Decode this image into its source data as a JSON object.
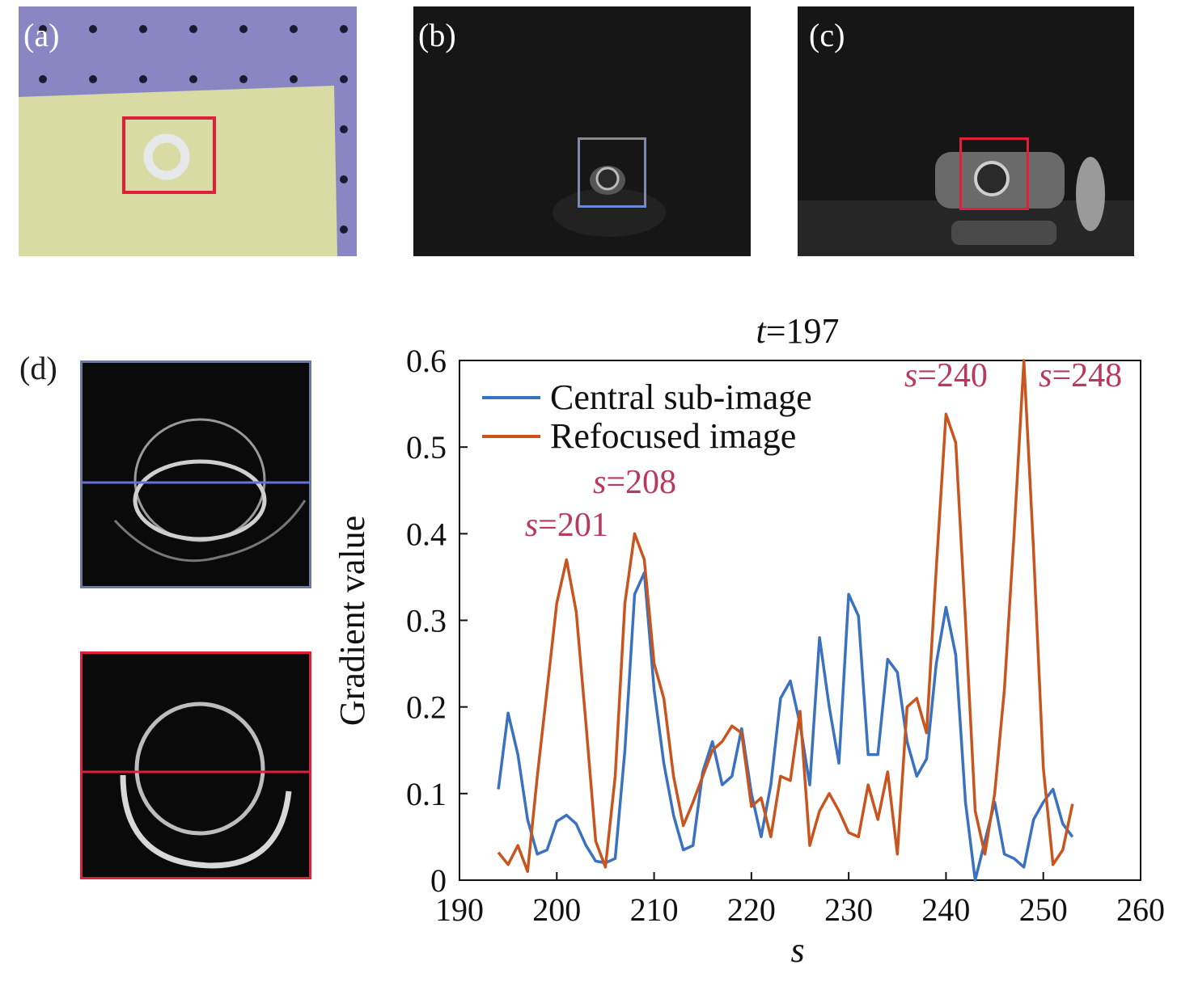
{
  "panels": {
    "a": {
      "label": "(a)"
    },
    "b": {
      "label": "(b)"
    },
    "c": {
      "label": "(c)"
    },
    "d": {
      "label": "(d)"
    }
  },
  "colors": {
    "central": "#3a72c0",
    "refocused": "#c8541e",
    "annotation": "#b83a5a",
    "red_box": "#e0203a",
    "blue_box": "#6a8cd8"
  },
  "chart_data": {
    "type": "line",
    "title_prefix": "t",
    "title_value": "=197",
    "xlabel": "s",
    "ylabel": "Gradient value",
    "xlim": [
      190,
      260
    ],
    "ylim": [
      0,
      0.6
    ],
    "xticks": [
      190,
      200,
      210,
      220,
      230,
      240,
      250,
      260
    ],
    "yticks": [
      0,
      0.1,
      0.2,
      0.3,
      0.4,
      0.5,
      0.6
    ],
    "ytick_labels": [
      "0",
      "0.1",
      "0.2",
      "0.3",
      "0.4",
      "0.5",
      "0.6"
    ],
    "legend_position": "top-left",
    "grid": false,
    "x": [
      194,
      195,
      196,
      197,
      198,
      199,
      200,
      201,
      202,
      203,
      204,
      205,
      206,
      207,
      208,
      209,
      210,
      211,
      212,
      213,
      214,
      215,
      216,
      217,
      218,
      219,
      220,
      221,
      222,
      223,
      224,
      225,
      226,
      227,
      228,
      229,
      230,
      231,
      232,
      233,
      234,
      235,
      236,
      237,
      238,
      239,
      240,
      241,
      242,
      243,
      244,
      245,
      246,
      247,
      248,
      249,
      250,
      251,
      252,
      253
    ],
    "series": [
      {
        "name": "Central sub-image",
        "color": "#3a72c0",
        "values": [
          0.105,
          0.193,
          0.145,
          0.07,
          0.03,
          0.035,
          0.068,
          0.075,
          0.065,
          0.04,
          0.022,
          0.02,
          0.025,
          0.15,
          0.33,
          0.355,
          0.22,
          0.135,
          0.075,
          0.035,
          0.04,
          0.125,
          0.16,
          0.11,
          0.12,
          0.175,
          0.1,
          0.05,
          0.11,
          0.21,
          0.23,
          0.18,
          0.11,
          0.28,
          0.2,
          0.135,
          0.33,
          0.305,
          0.145,
          0.145,
          0.255,
          0.24,
          0.16,
          0.12,
          0.14,
          0.25,
          0.315,
          0.26,
          0.09,
          0.0,
          0.045,
          0.09,
          0.03,
          0.025,
          0.015,
          0.07,
          0.09,
          0.105,
          0.065,
          0.05
        ]
      },
      {
        "name": "Refocused image",
        "color": "#c8541e",
        "values": [
          0.032,
          0.018,
          0.04,
          0.01,
          0.12,
          0.22,
          0.32,
          0.37,
          0.31,
          0.18,
          0.045,
          0.015,
          0.12,
          0.32,
          0.4,
          0.37,
          0.25,
          0.21,
          0.12,
          0.063,
          0.09,
          0.12,
          0.15,
          0.16,
          0.178,
          0.17,
          0.085,
          0.095,
          0.05,
          0.12,
          0.115,
          0.195,
          0.04,
          0.08,
          0.1,
          0.08,
          0.055,
          0.05,
          0.11,
          0.07,
          0.125,
          0.03,
          0.2,
          0.21,
          0.17,
          0.36,
          0.538,
          0.505,
          0.3,
          0.08,
          0.03,
          0.1,
          0.22,
          0.4,
          0.6,
          0.38,
          0.13,
          0.018,
          0.035,
          0.088
        ]
      }
    ],
    "annotations": [
      {
        "var": "s",
        "text": "=201",
        "x": 201
      },
      {
        "var": "s",
        "text": "=208",
        "x": 208
      },
      {
        "var": "s",
        "text": "=240",
        "x": 240
      },
      {
        "var": "s",
        "text": "=248",
        "x": 248
      }
    ]
  }
}
